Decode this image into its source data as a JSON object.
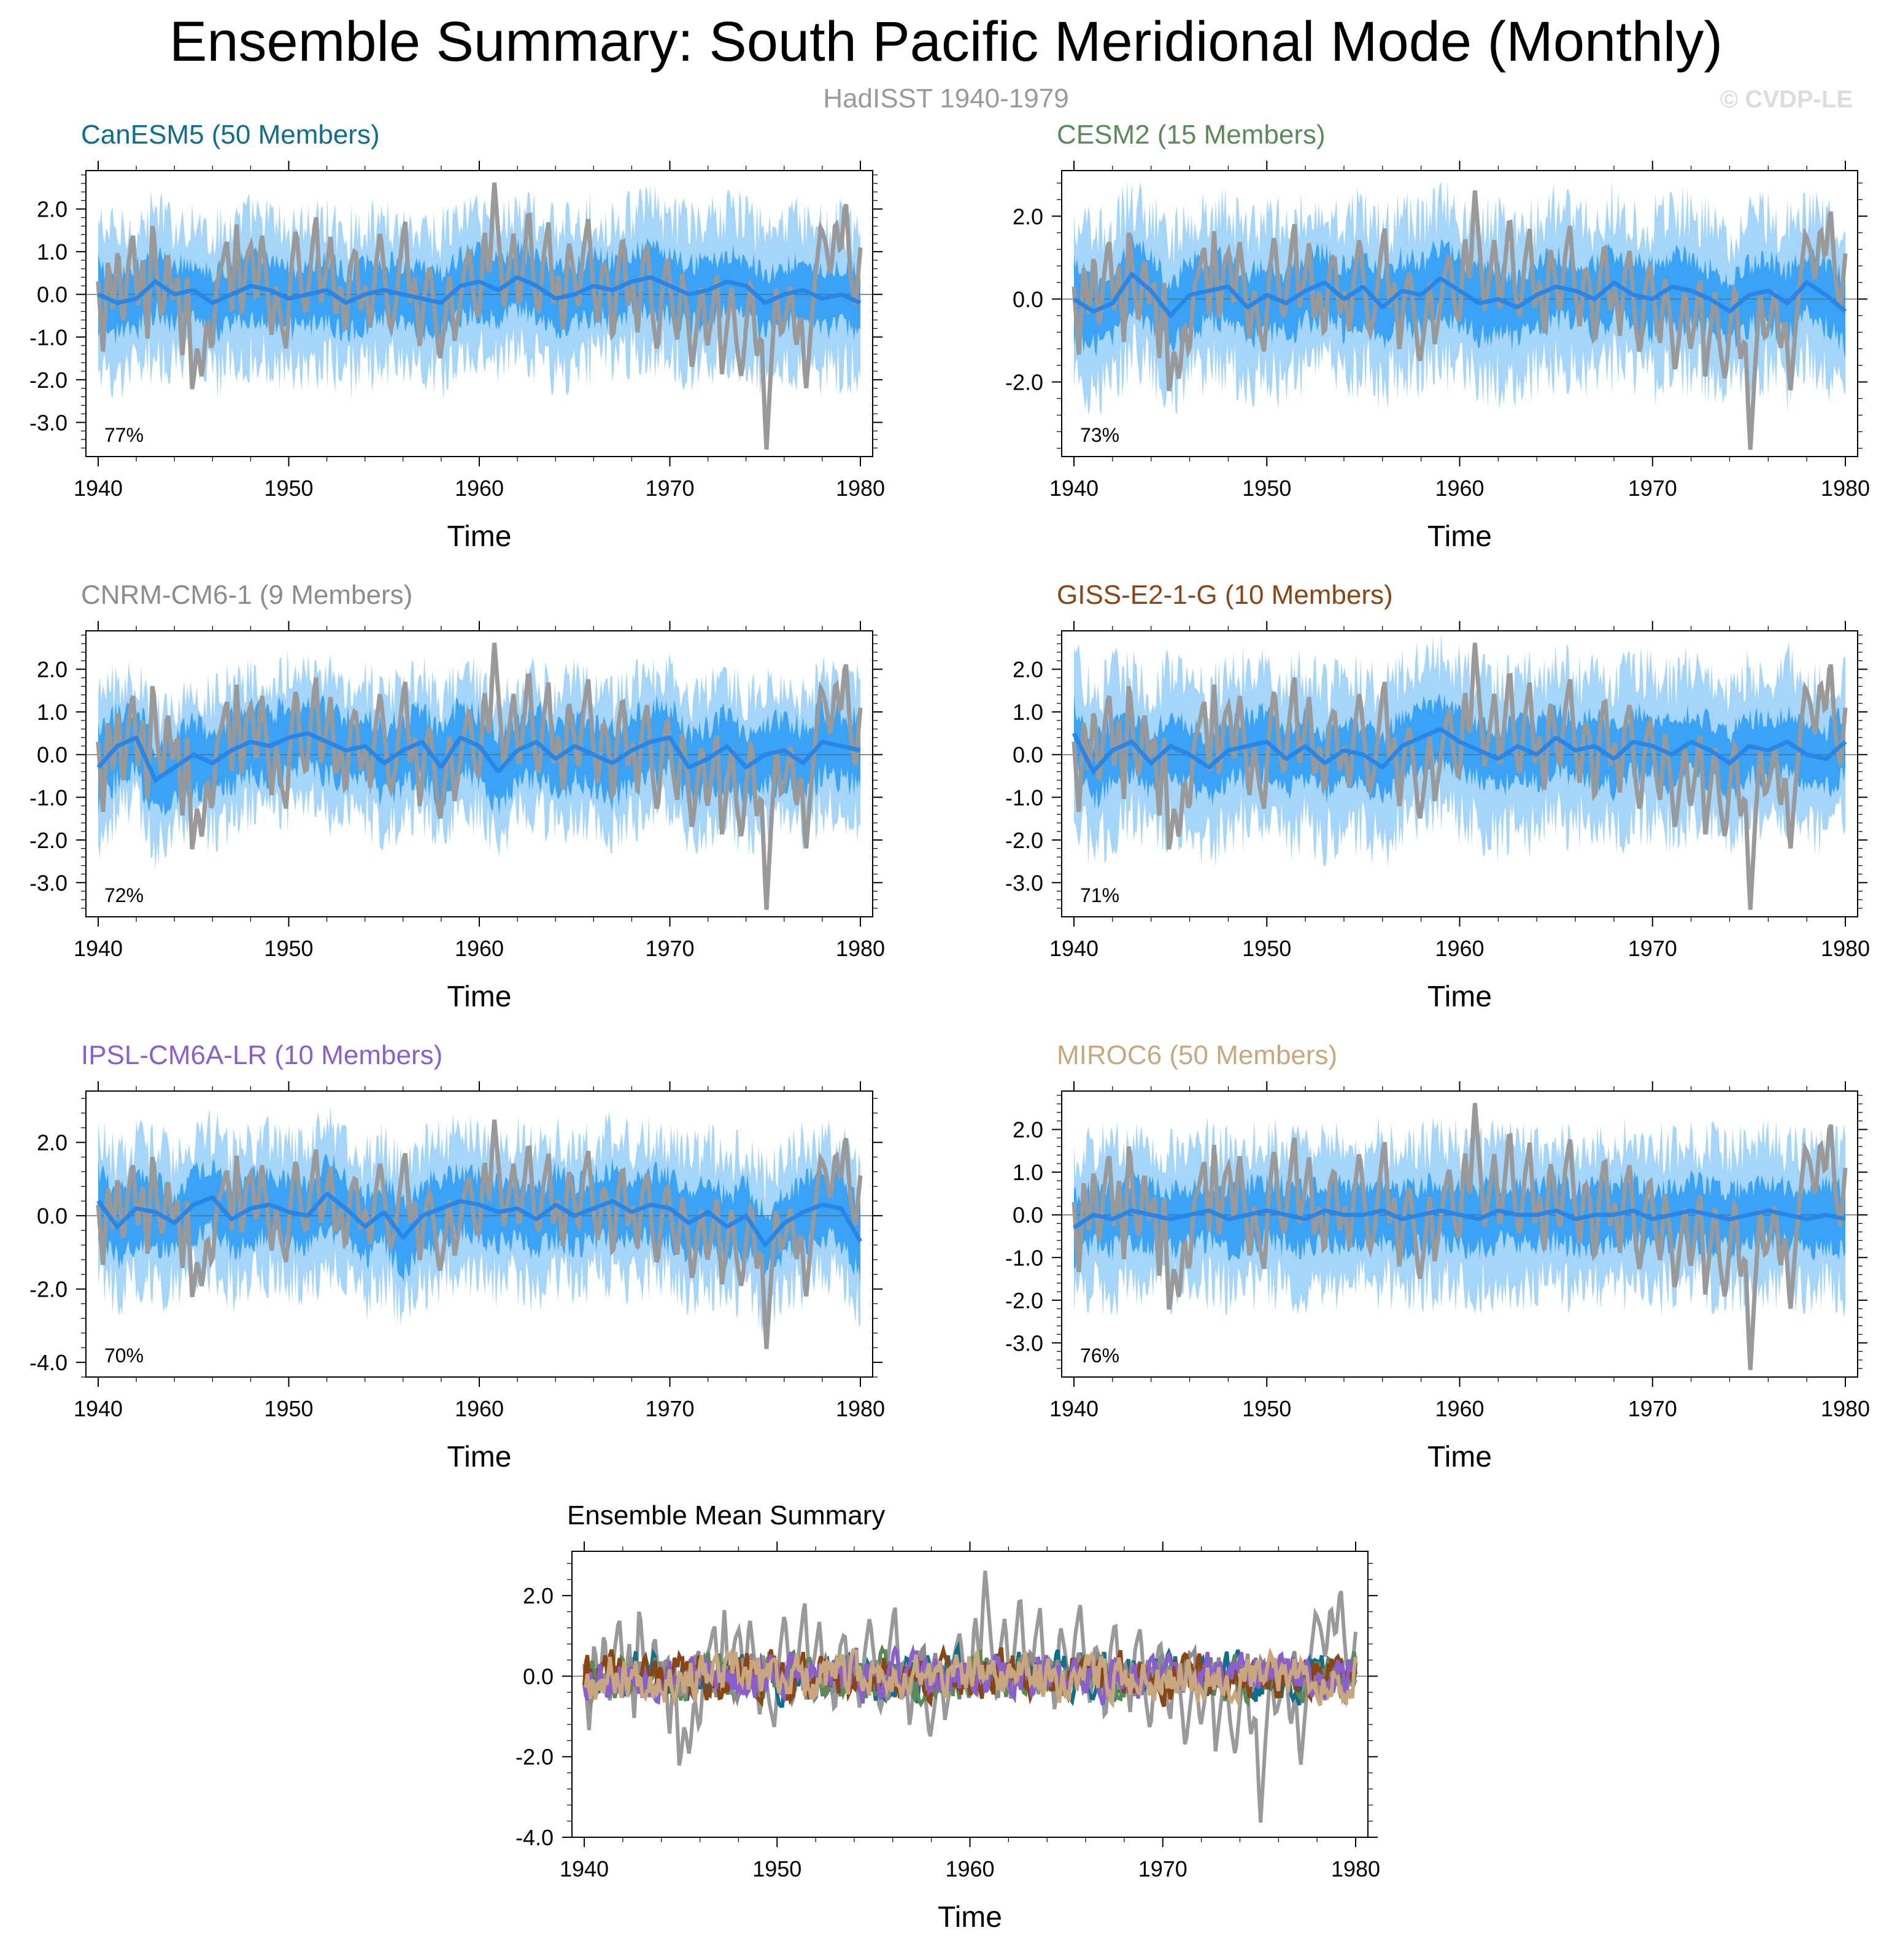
{
  "figure": {
    "title": "Ensemble Summary: South Pacific Meridional Mode (Monthly)",
    "subtitle": "HadISST 1940-1979",
    "copyright": "© CVDP-LE"
  },
  "colors": {
    "observations": "#999999",
    "range_light": "#a6d5fa",
    "range_dark": "#3ba3f5",
    "ensemble_mean": "#2a86e6"
  },
  "chart_data": [
    {
      "type": "area",
      "title": "CanESM5 (50 Members)",
      "title_color": "#0f6d8e",
      "xlabel": "Time",
      "ylabel": "",
      "xlim": [
        1940,
        1980
      ],
      "ylim": [
        -3.8,
        2.9
      ],
      "xticks": [
        "1940",
        "1950",
        "1960",
        "1970",
        "1980"
      ],
      "yticks": [
        "2.0",
        "1.0",
        "0.0",
        "-1.0",
        "-2.0",
        "-3.0"
      ],
      "ytick_values": [
        2,
        1,
        0,
        -1,
        -2,
        -3
      ],
      "annotation": "77%",
      "series": [
        {
          "name": "HadISST",
          "role": "observations"
        },
        {
          "name": "ensemble mean",
          "role": "ensemble_mean",
          "values": [
            0.0,
            -0.2,
            -0.1,
            0.3,
            0.0,
            0.1,
            -0.2,
            0.0,
            0.2,
            0.1,
            -0.1,
            0.0,
            0.1,
            -0.2,
            0.0,
            0.1,
            0.0,
            -0.1,
            -0.2,
            0.2,
            0.3,
            0.1,
            0.4,
            0.2,
            -0.1,
            0.0,
            0.2,
            0.1,
            0.3,
            0.4,
            0.2,
            0.0,
            0.1,
            0.3,
            0.2,
            -0.2,
            0.0,
            0.1,
            -0.1,
            0.0,
            -0.2
          ]
        },
        {
          "name": "ensemble spread",
          "role": "spread",
          "inner_halfwidth": 0.8,
          "outer_halfwidth": 1.6
        }
      ]
    },
    {
      "type": "area",
      "title": "CESM2 (15 Members)",
      "title_color": "#5a8a5a",
      "xlabel": "Time",
      "ylabel": "",
      "xlim": [
        1940,
        1980
      ],
      "ylim": [
        -3.8,
        3.1
      ],
      "xticks": [
        "1940",
        "1950",
        "1960",
        "1970",
        "1980"
      ],
      "yticks": [
        "2.0",
        "0.0",
        "-2.0"
      ],
      "ytick_values": [
        2,
        0,
        -2
      ],
      "annotation": "73%",
      "series": [
        {
          "name": "HadISST",
          "role": "observations"
        },
        {
          "name": "ensemble mean",
          "role": "ensemble_mean",
          "values": [
            0.0,
            -0.3,
            -0.1,
            0.6,
            0.2,
            -0.4,
            0.1,
            0.2,
            0.3,
            -0.2,
            0.1,
            -0.1,
            0.2,
            0.4,
            0.0,
            0.3,
            -0.2,
            0.2,
            0.1,
            0.5,
            0.2,
            -0.1,
            0.0,
            -0.2,
            0.1,
            0.3,
            0.2,
            0.0,
            0.4,
            0.1,
            0.0,
            0.3,
            0.2,
            0.0,
            -0.3,
            0.1,
            0.2,
            -0.1,
            0.4,
            0.1,
            -0.3
          ]
        },
        {
          "name": "ensemble spread",
          "role": "spread",
          "inner_halfwidth": 0.9,
          "outer_halfwidth": 1.8
        }
      ]
    },
    {
      "type": "area",
      "title": "CNRM-CM6-1 (9 Members)",
      "title_color": "#8c8c8c",
      "xlabel": "Time",
      "ylabel": "",
      "xlim": [
        1940,
        1980
      ],
      "ylim": [
        -3.8,
        2.9
      ],
      "xticks": [
        "1940",
        "1950",
        "1960",
        "1970",
        "1980"
      ],
      "yticks": [
        "2.0",
        "1.0",
        "0.0",
        "-1.0",
        "-2.0",
        "-3.0"
      ],
      "ytick_values": [
        2,
        1,
        0,
        -1,
        -2,
        -3
      ],
      "annotation": "72%",
      "series": [
        {
          "name": "HadISST",
          "role": "observations"
        },
        {
          "name": "ensemble mean",
          "role": "ensemble_mean",
          "values": [
            -0.3,
            0.2,
            0.4,
            -0.6,
            -0.3,
            0.0,
            -0.2,
            0.1,
            0.3,
            0.2,
            0.4,
            0.5,
            0.3,
            0.1,
            0.2,
            -0.2,
            0.1,
            0.3,
            -0.3,
            0.4,
            0.2,
            -0.4,
            0.1,
            0.3,
            -0.1,
            0.2,
            0.0,
            -0.2,
            0.1,
            0.3,
            0.4,
            -0.3,
            -0.1,
            0.2,
            -0.3,
            0.0,
            0.1,
            -0.2,
            0.3,
            0.2,
            0.1
          ]
        },
        {
          "name": "ensemble spread",
          "role": "spread",
          "inner_halfwidth": 0.9,
          "outer_halfwidth": 1.5
        }
      ]
    },
    {
      "type": "area",
      "title": "GISS-E2-1-G (10 Members)",
      "title_color": "#8b4513",
      "xlabel": "Time",
      "ylabel": "",
      "xlim": [
        1940,
        1980
      ],
      "ylim": [
        -3.8,
        2.9
      ],
      "xticks": [
        "1940",
        "1950",
        "1960",
        "1970",
        "1980"
      ],
      "yticks": [
        "2.0",
        "1.0",
        "0.0",
        "-1.0",
        "-2.0",
        "-3.0"
      ],
      "ytick_values": [
        2,
        1,
        0,
        -1,
        -2,
        -3
      ],
      "annotation": "71%",
      "series": [
        {
          "name": "HadISST",
          "role": "observations"
        },
        {
          "name": "ensemble mean",
          "role": "ensemble_mean",
          "values": [
            0.5,
            -0.4,
            0.1,
            0.3,
            -0.2,
            0.2,
            0.0,
            -0.3,
            0.1,
            0.2,
            0.3,
            -0.1,
            0.2,
            -0.2,
            0.1,
            0.0,
            -0.3,
            0.2,
            0.4,
            0.6,
            0.3,
            0.1,
            -0.1,
            0.2,
            0.0,
            0.4,
            0.1,
            0.2,
            -0.1,
            0.3,
            0.2,
            0.0,
            0.3,
            0.1,
            -0.2,
            0.2,
            0.1,
            0.3,
            0.0,
            -0.1,
            0.3
          ]
        },
        {
          "name": "ensemble spread",
          "role": "spread",
          "inner_halfwidth": 0.8,
          "outer_halfwidth": 1.7
        }
      ]
    },
    {
      "type": "area",
      "title": "IPSL-CM6A-LR (10 Members)",
      "title_color": "#8a5dd0",
      "xlabel": "Time",
      "ylabel": "",
      "xlim": [
        1940,
        1980
      ],
      "ylim": [
        -4.4,
        3.4
      ],
      "xticks": [
        "1940",
        "1950",
        "1960",
        "1970",
        "1980"
      ],
      "yticks": [
        "2.0",
        "0.0",
        "-2.0",
        "-4.0"
      ],
      "ytick_values": [
        2,
        0,
        -2,
        -4
      ],
      "annotation": "70%",
      "series": [
        {
          "name": "HadISST",
          "role": "observations"
        },
        {
          "name": "ensemble mean",
          "role": "ensemble_mean",
          "values": [
            0.4,
            -0.3,
            0.2,
            0.1,
            -0.2,
            0.3,
            0.5,
            -0.1,
            0.2,
            0.3,
            0.1,
            0.0,
            0.6,
            0.2,
            -0.3,
            0.1,
            -0.6,
            0.0,
            0.2,
            0.4,
            0.3,
            0.1,
            0.2,
            -0.1,
            0.3,
            0.0,
            0.2,
            0.4,
            0.1,
            0.3,
            0.2,
            -0.2,
            0.1,
            -0.3,
            0.0,
            -0.8,
            -0.2,
            0.1,
            0.3,
            0.2,
            -0.7
          ]
        },
        {
          "name": "ensemble spread",
          "role": "spread",
          "inner_halfwidth": 1.0,
          "outer_halfwidth": 1.8
        }
      ]
    },
    {
      "type": "area",
      "title": "MIROC6 (50 Members)",
      "title_color": "#c9a77e",
      "xlabel": "Time",
      "ylabel": "",
      "xlim": [
        1940,
        1980
      ],
      "ylim": [
        -3.8,
        2.9
      ],
      "xticks": [
        "1940",
        "1950",
        "1960",
        "1970",
        "1980"
      ],
      "yticks": [
        "2.0",
        "1.0",
        "0.0",
        "-1.0",
        "-2.0",
        "-3.0"
      ],
      "ytick_values": [
        2,
        1,
        0,
        -1,
        -2,
        -3
      ],
      "annotation": "76%",
      "series": [
        {
          "name": "HadISST",
          "role": "observations"
        },
        {
          "name": "ensemble mean",
          "role": "ensemble_mean",
          "values": [
            -0.3,
            0.0,
            -0.1,
            0.1,
            0.0,
            -0.1,
            0.0,
            0.1,
            -0.1,
            0.0,
            0.1,
            0.0,
            -0.1,
            0.1,
            0.0,
            0.0,
            0.1,
            -0.1,
            0.0,
            0.1,
            0.0,
            -0.1,
            0.1,
            0.0,
            0.0,
            0.1,
            -0.1,
            0.0,
            0.0,
            0.1,
            -0.1,
            0.0,
            0.1,
            0.0,
            -0.1,
            0.0,
            0.1,
            0.0,
            -0.1,
            0.0,
            -0.1
          ]
        },
        {
          "name": "ensemble spread",
          "role": "spread",
          "inner_halfwidth": 0.8,
          "outer_halfwidth": 1.6
        }
      ]
    },
    {
      "type": "line",
      "title": "Ensemble Mean Summary",
      "title_color": "#000000",
      "xlabel": "Time",
      "ylabel": "",
      "xlim": [
        1940,
        1980
      ],
      "ylim": [
        -4.0,
        3.1
      ],
      "xticks": [
        "1940",
        "1950",
        "1960",
        "1970",
        "1980"
      ],
      "yticks": [
        "2.0",
        "0.0",
        "-2.0",
        "-4.0"
      ],
      "ytick_values": [
        2,
        0,
        -2,
        -4
      ],
      "annotation": "",
      "series": [
        {
          "name": "HadISST",
          "color": "#999999",
          "role": "observations"
        },
        {
          "name": "CanESM5",
          "color": "#0f6d8e",
          "seed": 11
        },
        {
          "name": "CESM2",
          "color": "#5a8a5a",
          "seed": 23
        },
        {
          "name": "CNRM-CM6-1",
          "color": "#8c8c8c",
          "seed": 37
        },
        {
          "name": "GISS-E2-1-G",
          "color": "#8b4513",
          "seed": 41
        },
        {
          "name": "IPSL-CM6A-LR",
          "color": "#8a5dd0",
          "seed": 53
        },
        {
          "name": "MIROC6",
          "color": "#c9a77e",
          "seed": 67
        }
      ]
    }
  ],
  "observations": {
    "name": "HadISST",
    "x_start": 1940,
    "x_end": 1980,
    "values": [
      0.3,
      -1.4,
      0.9,
      -0.5,
      1.2,
      -0.8,
      0.6,
      1.5,
      -0.3,
      0.8,
      -1.1,
      1.8,
      0.2,
      -0.6,
      1.1,
      -0.2,
      0.5,
      -1.5,
      0.4,
      -2.3,
      -1.2,
      -2.0,
      -0.5,
      -1.4,
      0.3,
      0.7,
      1.3,
      -0.4,
      1.7,
      -0.6,
      0.9,
      1.2,
      -0.3,
      1.5,
      0.4,
      -1.0,
      0.2,
      -0.7,
      -1.3,
      0.6,
      1.6,
      0.1,
      -0.5,
      0.8,
      1.9,
      -0.2,
      0.5,
      1.4,
      -0.6,
      0.3,
      -1.0,
      0.7,
      1.1,
      -0.4,
      0.2,
      -0.8,
      0.6,
      1.5,
      0.3,
      -0.9,
      -0.4,
      0.8,
      1.8,
      -0.2,
      0.4,
      -1.3,
      0.1,
      0.7,
      -0.4,
      -1.6,
      -0.7,
      0.5,
      -1.1,
      -0.3,
      0.6,
      1.1,
      -0.2,
      -0.6,
      1.6,
      0.3,
      2.7,
      1.2,
      -0.3,
      0.6,
      1.5,
      -0.4,
      0.8,
      2.1,
      0.2,
      -0.5,
      0.9,
      1.7,
      -0.3,
      0.5,
      -1.0,
      1.3,
      0.6,
      -0.4,
      1.0,
      1.8,
      0.2,
      -0.7,
      0.8,
      0.4,
      -1.2,
      0.6,
      1.4,
      -0.3,
      0.3,
      -0.9,
      0.7,
      1.2,
      -0.5,
      -1.4,
      0.2,
      0.9,
      -0.3,
      -1.1,
      0.5,
      -0.4,
      -1.8,
      -0.7,
      0.3,
      -1.3,
      -0.5,
      0.6,
      -1.9,
      -0.8,
      0.2,
      -1.2,
      -2.0,
      -0.6,
      0.4,
      -1.5,
      -0.9,
      -3.7,
      -1.6,
      0.2,
      -1.0,
      -0.5,
      0.3,
      -1.3,
      -0.4,
      -2.3,
      -0.8,
      0.5,
      1.6,
      1.2,
      0.4,
      1.8,
      0.9,
      2.3,
      0.5,
      -0.3,
      1.1
    ]
  },
  "ensemble_mean_summary": {
    "amplitude": 0.45
  }
}
